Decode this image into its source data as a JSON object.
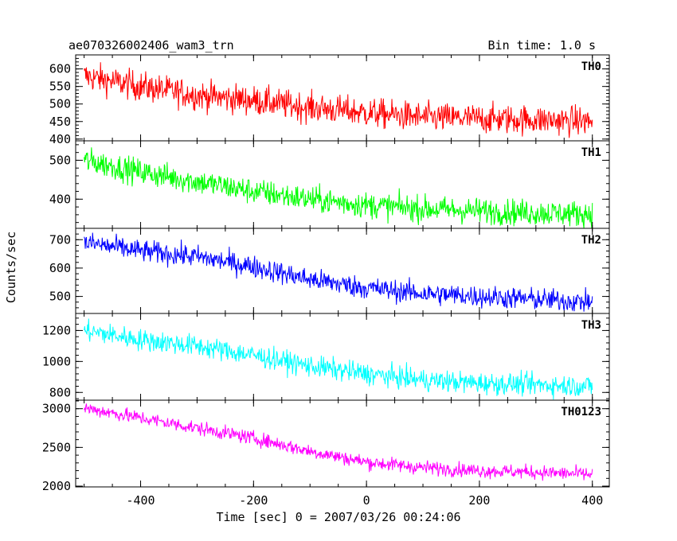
{
  "chart_data": {
    "type": "line",
    "title": "ae070326002406_wam3_trn",
    "bin_time": "Bin time: 1.0 s",
    "xlabel": "Time [sec] 0 = 2007/03/26 00:24:06",
    "ylabel": "Counts/sec",
    "xlim": [
      -515,
      430
    ],
    "x_ticks": [
      -400,
      -200,
      0,
      200,
      400
    ],
    "x_range": [
      -500,
      400
    ],
    "x_step": 1,
    "panels": [
      {
        "name": "TH0",
        "color": "#ff0000",
        "ylim": [
          395,
          640
        ],
        "y_ticks": [
          400,
          450,
          500,
          550,
          600
        ],
        "trend": [
          [
            -500,
            580
          ],
          [
            -400,
            550
          ],
          [
            -300,
            525
          ],
          [
            -200,
            510
          ],
          [
            -100,
            490
          ],
          [
            0,
            475
          ],
          [
            100,
            462
          ],
          [
            200,
            458
          ],
          [
            300,
            455
          ],
          [
            400,
            450
          ]
        ],
        "noise": 30
      },
      {
        "name": "TH1",
        "color": "#00ff00",
        "ylim": [
          325,
          550
        ],
        "y_ticks": [
          400,
          500
        ],
        "trend": [
          [
            -500,
            500
          ],
          [
            -400,
            470
          ],
          [
            -300,
            445
          ],
          [
            -200,
            420
          ],
          [
            -100,
            400
          ],
          [
            0,
            385
          ],
          [
            100,
            375
          ],
          [
            200,
            370
          ],
          [
            300,
            365
          ],
          [
            400,
            362
          ]
        ],
        "noise": 24
      },
      {
        "name": "TH2",
        "color": "#0000ff",
        "ylim": [
          440,
          740
        ],
        "y_ticks": [
          500,
          600,
          700
        ],
        "trend": [
          [
            -500,
            690
          ],
          [
            -400,
            660
          ],
          [
            -300,
            640
          ],
          [
            -200,
            605
          ],
          [
            -100,
            560
          ],
          [
            0,
            530
          ],
          [
            100,
            510
          ],
          [
            200,
            500
          ],
          [
            300,
            490
          ],
          [
            400,
            480
          ]
        ],
        "noise": 28
      },
      {
        "name": "TH3",
        "color": "#00ffff",
        "ylim": [
          750,
          1310
        ],
        "y_ticks": [
          800,
          1000,
          1200
        ],
        "trend": [
          [
            -500,
            1200
          ],
          [
            -400,
            1140
          ],
          [
            -300,
            1100
          ],
          [
            -200,
            1040
          ],
          [
            -100,
            970
          ],
          [
            0,
            920
          ],
          [
            100,
            880
          ],
          [
            200,
            860
          ],
          [
            300,
            850
          ],
          [
            400,
            840
          ]
        ],
        "noise": 50
      },
      {
        "name": "TH0123",
        "color": "#ff00ff",
        "ylim": [
          1990,
          3110
        ],
        "y_ticks": [
          2000,
          2500,
          3000
        ],
        "trend": [
          [
            -500,
            3010
          ],
          [
            -400,
            2880
          ],
          [
            -300,
            2750
          ],
          [
            -200,
            2620
          ],
          [
            -100,
            2450
          ],
          [
            0,
            2310
          ],
          [
            100,
            2240
          ],
          [
            200,
            2200
          ],
          [
            300,
            2180
          ],
          [
            400,
            2150
          ]
        ],
        "noise": 65
      }
    ]
  }
}
